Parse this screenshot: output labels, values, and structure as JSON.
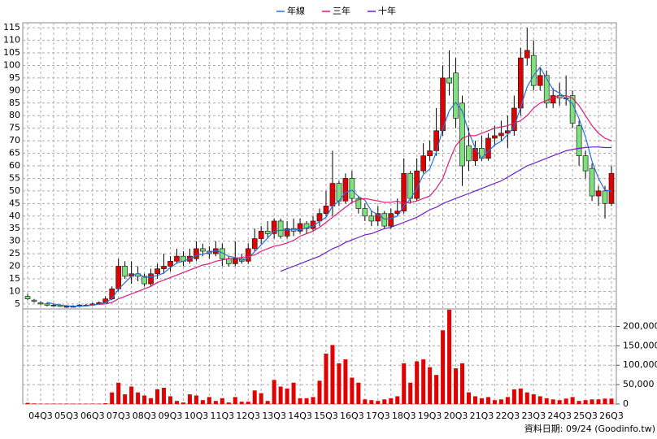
{
  "chart_data": {
    "type": "candlestick",
    "categories": [
      null,
      null,
      "04Q3",
      null,
      null,
      null,
      "05Q3",
      null,
      null,
      null,
      "06Q3",
      null,
      null,
      null,
      "07Q3",
      null,
      null,
      null,
      "08Q3",
      null,
      null,
      null,
      "09Q3",
      null,
      null,
      null,
      "10Q3",
      null,
      null,
      null,
      "11Q3",
      null,
      null,
      null,
      "12Q3",
      null,
      null,
      null,
      "13Q3",
      null,
      null,
      null,
      "14Q3",
      null,
      null,
      null,
      "15Q3",
      null,
      null,
      null,
      "16Q3",
      null,
      null,
      null,
      "17Q3",
      null,
      null,
      null,
      "18Q3",
      null,
      null,
      null,
      "19Q3",
      null,
      null,
      null,
      "20Q3",
      null,
      null,
      null,
      "21Q3",
      null,
      null,
      null,
      "22Q3",
      null,
      null,
      null,
      "23Q3",
      null,
      null,
      null,
      "24Q3",
      null,
      null,
      null,
      "25Q3",
      null,
      null,
      null,
      "26Q3"
    ],
    "open": [
      8,
      6.5,
      5.5,
      5,
      4.5,
      4.5,
      4,
      4,
      4,
      4.5,
      4.5,
      5,
      5.5,
      7,
      11,
      20,
      16,
      17,
      16,
      13,
      17,
      19,
      20,
      22,
      24,
      22,
      23,
      27,
      26,
      25,
      27,
      23,
      21,
      23,
      22,
      27,
      31,
      34,
      33,
      38,
      32,
      35,
      34,
      37,
      35,
      38,
      41,
      44,
      53,
      46,
      55,
      47,
      43,
      40,
      38,
      41,
      36,
      41,
      42,
      57,
      47,
      58,
      64,
      66,
      74,
      95,
      97,
      85,
      68,
      62,
      67,
      63,
      71,
      72,
      73,
      74,
      83,
      103,
      104,
      92,
      96,
      85,
      88,
      87,
      88,
      76,
      64,
      59,
      48,
      50,
      45
    ],
    "high": [
      9,
      7,
      6,
      5.5,
      5,
      5,
      4.5,
      4.5,
      5,
      5,
      5.5,
      6,
      8,
      12,
      23,
      22,
      22,
      20,
      17,
      19,
      21,
      25,
      24,
      27,
      26,
      27,
      30,
      29,
      28,
      30,
      29,
      24,
      30,
      25,
      29,
      35,
      36,
      38,
      39,
      39,
      38,
      39,
      39,
      38,
      40,
      43,
      50,
      66,
      54,
      57,
      58,
      48,
      45,
      42,
      44,
      42,
      43,
      47,
      63,
      58,
      63,
      69,
      70,
      83,
      100,
      106,
      103,
      88,
      75,
      70,
      72,
      73,
      76,
      78,
      80,
      88,
      107,
      115,
      110,
      99,
      98,
      91,
      93,
      96,
      90,
      78,
      66,
      61,
      52,
      52,
      60
    ],
    "low": [
      6.5,
      5.5,
      4.5,
      4,
      4,
      3.8,
      3.5,
      3.8,
      3.8,
      4,
      4.3,
      4.8,
      5.3,
      6.5,
      10,
      15,
      13,
      14,
      12,
      12,
      15,
      17,
      18,
      21,
      20,
      21,
      22,
      24,
      23,
      24,
      20,
      20,
      20,
      21,
      21,
      26,
      29,
      31,
      31,
      31,
      31,
      32,
      33,
      33,
      34,
      36,
      40,
      40,
      44,
      45,
      45,
      41,
      38,
      36,
      36,
      35,
      35,
      40,
      41,
      45,
      46,
      57,
      62,
      64,
      72,
      88,
      75,
      52,
      58,
      60,
      62,
      62,
      68,
      70,
      67,
      72,
      80,
      100,
      90,
      90,
      83,
      83,
      84,
      84,
      75,
      60,
      55,
      46,
      44,
      39,
      44
    ],
    "close": [
      7,
      6,
      5,
      4.5,
      4.5,
      4,
      4,
      4,
      4.5,
      4.5,
      5,
      5.5,
      7,
      11,
      20,
      16,
      17,
      16,
      13,
      17,
      19,
      20,
      22,
      24,
      22,
      24,
      27,
      26,
      25,
      27,
      23,
      21,
      23,
      22,
      27,
      31,
      34,
      33,
      38,
      32,
      35,
      34,
      37,
      35,
      38,
      41,
      44,
      53,
      46,
      55,
      47,
      43,
      40,
      38,
      41,
      36,
      41,
      42,
      57,
      47,
      58,
      64,
      66,
      74,
      95,
      93,
      79,
      60,
      62,
      67,
      63,
      71,
      72,
      73,
      74,
      83,
      103,
      106,
      92,
      96,
      85,
      88,
      87,
      87,
      77,
      64,
      58,
      48,
      50,
      45,
      57
    ],
    "up_color": "#e00000",
    "down_color": "#7ee07e",
    "series": [
      {
        "name": "年線",
        "color": "#2a6fd6",
        "values": [
          null,
          null,
          null,
          5.6,
          5,
          4.5,
          4.25,
          4.1,
          4.1,
          4.25,
          4.5,
          4.9,
          5.5,
          7.1,
          10.9,
          13.5,
          16,
          17.3,
          15.5,
          15.8,
          16.3,
          17.3,
          19.5,
          21.3,
          22,
          23,
          24.3,
          24.8,
          25.5,
          26.3,
          25.3,
          24,
          23.5,
          22.3,
          23.3,
          25.8,
          28.5,
          31.3,
          34,
          34.3,
          34.5,
          34.8,
          34.5,
          35.3,
          36,
          37.8,
          39.5,
          44,
          46,
          49.5,
          50.3,
          47.8,
          46.3,
          42,
          40.5,
          38.8,
          39,
          40,
          44,
          46.8,
          51,
          56.5,
          58.8,
          65.5,
          74.8,
          82,
          85.3,
          81.8,
          73.5,
          67,
          63,
          65.8,
          68.3,
          69.8,
          72.5,
          75.5,
          83.3,
          91.5,
          96,
          99.3,
          94.8,
          90.3,
          89,
          86.8,
          84.8,
          78.8,
          71.5,
          61.8,
          55,
          50.3,
          50
        ]
      },
      {
        "name": "三年",
        "color": "#d81b7a",
        "values": [
          null,
          null,
          null,
          null,
          null,
          null,
          null,
          null,
          null,
          null,
          null,
          4.8,
          5,
          5.6,
          7,
          8,
          9,
          10,
          11,
          12,
          13.5,
          14.5,
          15.5,
          16.5,
          17.5,
          18.5,
          19.5,
          20.5,
          21,
          22,
          22.5,
          23,
          23.3,
          23.5,
          24,
          24.5,
          26,
          27,
          28,
          28.5,
          29.3,
          30.3,
          32,
          33,
          34,
          35.5,
          37.5,
          39.5,
          41.5,
          43.5,
          45.5,
          46.5,
          47,
          46.5,
          46,
          45.5,
          45.5,
          46,
          45,
          45.5,
          46,
          47,
          48,
          51,
          55,
          62,
          68,
          71,
          72,
          72,
          73,
          74,
          75,
          75.5,
          76,
          77,
          78,
          80,
          83,
          85,
          86,
          87,
          88,
          88,
          87,
          84,
          80,
          76,
          73,
          71,
          70
        ]
      },
      {
        "name": "十年",
        "color": "#6a1fc4",
        "values": [
          null,
          null,
          null,
          null,
          null,
          null,
          null,
          null,
          null,
          null,
          null,
          null,
          null,
          null,
          null,
          null,
          null,
          null,
          null,
          null,
          null,
          null,
          null,
          null,
          null,
          null,
          null,
          null,
          null,
          null,
          null,
          null,
          null,
          null,
          null,
          null,
          null,
          null,
          null,
          18,
          19,
          20,
          21,
          22,
          23,
          24,
          25.5,
          27,
          28,
          29.5,
          30.5,
          31.5,
          32.5,
          33,
          34,
          35,
          35.5,
          36.5,
          37.5,
          38.5,
          39.5,
          41,
          42.5,
          43.5,
          45,
          46,
          47,
          48,
          49,
          50,
          51,
          52,
          53,
          54,
          55.5,
          57,
          58.5,
          60,
          61,
          62,
          63,
          64,
          65,
          66,
          66.5,
          67,
          67.3,
          67.5,
          67.5,
          67.3,
          67.3
        ]
      }
    ],
    "ylim": [
      3,
      117
    ],
    "yticks": [
      5,
      10,
      15,
      20,
      25,
      30,
      35,
      40,
      45,
      50,
      55,
      60,
      65,
      70,
      75,
      80,
      85,
      90,
      95,
      100,
      105,
      110,
      115
    ],
    "volume": [
      3000,
      1500,
      1000,
      1000,
      1000,
      1000,
      1000,
      1000,
      1000,
      1000,
      1000,
      1000,
      2000,
      30000,
      55000,
      25000,
      45000,
      30000,
      22000,
      15000,
      38000,
      42000,
      20000,
      8000,
      4000,
      25000,
      22000,
      10000,
      18000,
      8000,
      15000,
      4000,
      18000,
      6000,
      6000,
      35000,
      28000,
      8000,
      62000,
      45000,
      40000,
      55000,
      15000,
      15000,
      18000,
      60000,
      130000,
      152000,
      105000,
      115000,
      68000,
      55000,
      12000,
      10000,
      8000,
      12000,
      15000,
      20000,
      105000,
      55000,
      110000,
      115000,
      95000,
      75000,
      190000,
      243000,
      92000,
      105000,
      30000,
      20000,
      15000,
      18000,
      10000,
      12000,
      18000,
      38000,
      40000,
      30000,
      25000,
      20000,
      15000,
      12000,
      10000,
      14000,
      18000,
      8000,
      10000,
      12000,
      12000,
      14000,
      14000
    ],
    "volume_color": "#e00000",
    "y2lim": [
      0,
      245000
    ],
    "y2ticks": [
      0,
      {
        "value": 50000,
        "label": "50,000"
      },
      {
        "value": 100000,
        "label": "100,000"
      },
      {
        "value": 150000,
        "label": "150,000"
      },
      {
        "value": 200000,
        "label": "200,000"
      }
    ],
    "grid": true,
    "legend": "top",
    "footer": "資料日期: 09/24  (Goodinfo.tw)"
  }
}
